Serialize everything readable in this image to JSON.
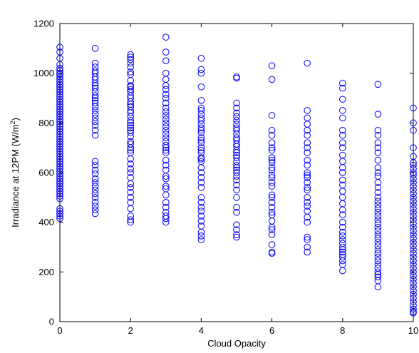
{
  "chart_data": {
    "type": "scatter",
    "xlabel": "Cloud Opacity",
    "ylabel_main": "Irradiance at 12PM (W/m",
    "ylabel_sup": "2",
    "ylabel_close": ")",
    "xlim": [
      0,
      10
    ],
    "ylim": [
      0,
      1200
    ],
    "xticks": [
      0,
      2,
      4,
      6,
      8,
      10
    ],
    "yticks": [
      0,
      200,
      400,
      600,
      800,
      1000,
      1200
    ],
    "grid": false,
    "marker": "open-circle",
    "marker_color": "#0000ff",
    "series": [
      {
        "x": 0,
        "values": [
          1105,
          1085,
          1060,
          1035,
          1020,
          1010,
          1000,
          995,
          985,
          975,
          965,
          955,
          945,
          935,
          925,
          915,
          905,
          895,
          885,
          875,
          865,
          855,
          845,
          835,
          825,
          815,
          805,
          795,
          785,
          775,
          765,
          755,
          745,
          735,
          725,
          715,
          705,
          695,
          685,
          675,
          665,
          655,
          645,
          635,
          625,
          615,
          605,
          595,
          585,
          575,
          565,
          555,
          545,
          535,
          525,
          515,
          505,
          495,
          455,
          445,
          435,
          425,
          415
        ]
      },
      {
        "x": 1,
        "values": [
          1100,
          1040,
          1025,
          1010,
          1000,
          985,
          975,
          960,
          950,
          940,
          925,
          910,
          900,
          890,
          880,
          865,
          850,
          835,
          820,
          805,
          790,
          770,
          750,
          645,
          630,
          610,
          595,
          575,
          560,
          545,
          530,
          515,
          500,
          480,
          465,
          450,
          435
        ]
      },
      {
        "x": 2,
        "values": [
          1075,
          1065,
          1055,
          1040,
          1025,
          1005,
          995,
          970,
          950,
          945,
          935,
          925,
          910,
          900,
          885,
          875,
          865,
          850,
          840,
          825,
          810,
          800,
          790,
          780,
          770,
          760,
          745,
          725,
          715,
          700,
          690,
          680,
          655,
          635,
          615,
          600,
          580,
          555,
          540,
          520,
          500,
          480,
          455,
          425,
          410,
          400
        ]
      },
      {
        "x": 3,
        "values": [
          1145,
          1085,
          1050,
          1000,
          975,
          950,
          935,
          915,
          900,
          880,
          860,
          845,
          830,
          815,
          800,
          785,
          770,
          755,
          740,
          725,
          710,
          700,
          690,
          680,
          650,
          630,
          610,
          585,
          575,
          545,
          535,
          510,
          480,
          460,
          440,
          425,
          415,
          400
        ]
      },
      {
        "x": 4,
        "values": [
          1060,
          1015,
          1000,
          945,
          890,
          860,
          850,
          835,
          820,
          810,
          795,
          780,
          770,
          760,
          740,
          730,
          720,
          700,
          690,
          680,
          660,
          655,
          645,
          620,
          600,
          580,
          560,
          540,
          500,
          480,
          460,
          445,
          425,
          405,
          385,
          360,
          345,
          330
        ]
      },
      {
        "x": 5,
        "values": [
          985,
          980,
          880,
          860,
          840,
          825,
          810,
          795,
          780,
          770,
          755,
          740,
          730,
          715,
          705,
          690,
          680,
          670,
          660,
          645,
          630,
          620,
          610,
          600,
          585,
          570,
          550,
          530,
          500,
          460,
          440,
          390,
          370,
          350,
          340
        ]
      },
      {
        "x": 6,
        "values": [
          1030,
          975,
          830,
          770,
          750,
          720,
          700,
          690,
          660,
          650,
          640,
          620,
          610,
          590,
          580,
          560,
          545,
          510,
          500,
          480,
          460,
          440,
          430,
          405,
          380,
          370,
          350,
          310,
          280,
          275
        ]
      },
      {
        "x": 7,
        "values": [
          1040,
          850,
          820,
          795,
          770,
          750,
          720,
          700,
          680,
          650,
          630,
          600,
          590,
          580,
          560,
          540,
          530,
          500,
          480,
          465,
          445,
          420,
          400,
          340,
          330,
          300,
          280
        ]
      },
      {
        "x": 8,
        "values": [
          960,
          940,
          895,
          850,
          820,
          770,
          750,
          720,
          700,
          670,
          645,
          620,
          600,
          570,
          550,
          525,
          500,
          475,
          450,
          430,
          400,
          380,
          360,
          345,
          330,
          315,
          300,
          290,
          280,
          270,
          260,
          245,
          230,
          205
        ]
      },
      {
        "x": 9,
        "values": [
          955,
          835,
          770,
          750,
          720,
          700,
          680,
          650,
          620,
          600,
          585,
          560,
          540,
          520,
          500,
          485,
          470,
          455,
          440,
          425,
          410,
          395,
          380,
          365,
          350,
          335,
          320,
          305,
          290,
          275,
          260,
          245,
          230,
          215,
          200,
          190,
          180,
          165,
          140
        ]
      },
      {
        "x": 10,
        "values": [
          860,
          800,
          770,
          700,
          665,
          640,
          630,
          615,
          600,
          590,
          575,
          560,
          545,
          530,
          515,
          500,
          485,
          470,
          455,
          440,
          425,
          410,
          395,
          380,
          365,
          350,
          335,
          320,
          305,
          290,
          275,
          260,
          245,
          230,
          215,
          200,
          185,
          170,
          155,
          140,
          125,
          110,
          95,
          80,
          65,
          50,
          40,
          35
        ]
      }
    ]
  }
}
